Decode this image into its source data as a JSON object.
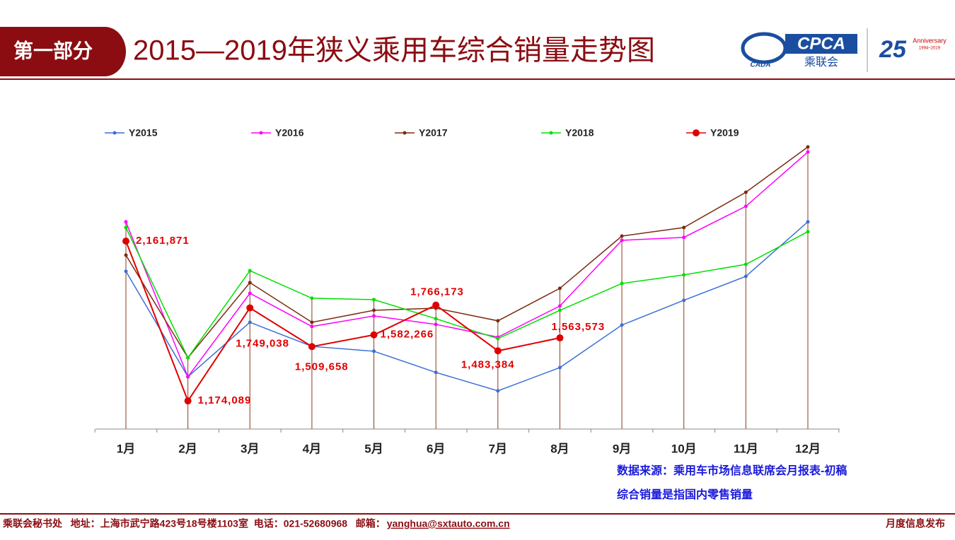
{
  "header": {
    "section": "第一部分",
    "title": "2015—2019年狭义乘用车综合销量走势图",
    "logo_text": "CPCA",
    "logo_sub": "乘联会",
    "logo_cada": "CADA",
    "anniversary": "Anniversary",
    "anniversary_years": "1994~2019"
  },
  "chart_data": {
    "type": "line",
    "categories": [
      "1月",
      "2月",
      "3月",
      "4月",
      "5月",
      "6月",
      "7月",
      "8月",
      "9月",
      "10月",
      "11月",
      "12月"
    ],
    "ylim": [
      1000000,
      2866000
    ],
    "legend": "top",
    "series": [
      {
        "name": "Y2015",
        "color": "#3b6fd8",
        "values": [
          1975000,
          1323000,
          1660000,
          1511000,
          1481000,
          1350000,
          1236000,
          1380000,
          1643000,
          1796000,
          1944000,
          2281000
        ]
      },
      {
        "name": "Y2016",
        "color": "#ff00ff",
        "values": [
          2281000,
          1323000,
          1839000,
          1634000,
          1699000,
          1647000,
          1568000,
          1761000,
          2167000,
          2185000,
          2377000,
          2713000
        ]
      },
      {
        "name": "Y2017",
        "color": "#7b2c10",
        "values": [
          2075000,
          1441000,
          1905000,
          1660000,
          1734000,
          1747000,
          1669000,
          1870000,
          2193000,
          2246000,
          2464000,
          2744000
        ]
      },
      {
        "name": "Y2018",
        "color": "#00e000",
        "values": [
          2246000,
          1441000,
          1979000,
          1809000,
          1800000,
          1682000,
          1559000,
          1734000,
          1900000,
          1953000,
          2018000,
          2220000
        ]
      },
      {
        "name": "Y2019",
        "color": "#e00000",
        "values": [
          2161871,
          1174089,
          1749038,
          1509658,
          1582266,
          1766173,
          1483384,
          1563573,
          null,
          null,
          null,
          null
        ],
        "value_labels": [
          "2,161,871",
          "1,174,089",
          "1,749,038",
          "1,509,658",
          "1,582,266",
          "1,766,173",
          "1,483,384",
          "1,563,573",
          null,
          null,
          null,
          null
        ]
      }
    ]
  },
  "notes": [
    "数据来源：乘用车市场信息联席会月报表-初稿",
    "综合销量是指国内零售销量"
  ],
  "footer": {
    "contact": "乘联会秘书处   地址：上海市武宁路423号18号楼1103室  电话：021-52680968   邮箱：",
    "email": "yanghua@sxtauto.com.cn",
    "right": "月度信息发布"
  }
}
